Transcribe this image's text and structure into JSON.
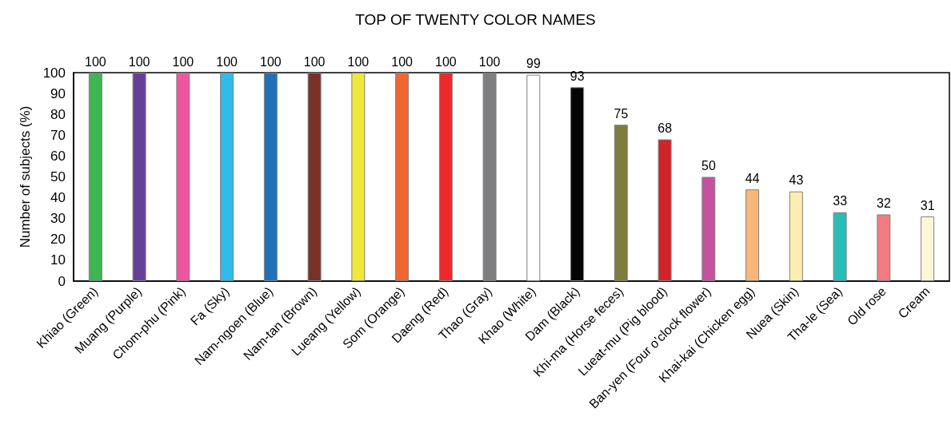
{
  "chart_data": {
    "type": "bar",
    "title": "TOP OF TWENTY COLOR NAMES",
    "ylabel": "Number of subjects (%)",
    "categories": [
      "Khiao (Green)",
      "Muang (Purple)",
      "Chom-phu (Pink)",
      "Fa (Sky)",
      "Nam-ngoen (Blue)",
      "Nam-tan (Brown)",
      "Lueang (Yellow)",
      "Som (Orange)",
      "Daeng (Red)",
      "Thao (Gray)",
      "Khao (White)",
      "Dam (Black)",
      "Khi-ma (Horse feces)",
      "Lueat-mu (Pig blood)",
      "Ban-yen (Four o'clock flower)",
      "Khai-kai (Chicken egg)",
      "Nuea (Skin)",
      "Tha-le (Sea)",
      "Old rose",
      "Cream"
    ],
    "values": [
      100,
      100,
      100,
      100,
      100,
      100,
      100,
      100,
      100,
      100,
      99,
      93,
      75,
      68,
      50,
      44,
      43,
      33,
      32,
      31
    ],
    "colors": [
      "#3fb554",
      "#673f98",
      "#ee55a0",
      "#2fbbec",
      "#2271b8",
      "#7a3128",
      "#f0e838",
      "#f06630",
      "#ec2a2d",
      "#7e7d80",
      "#ffffff",
      "#050505",
      "#7e7e3c",
      "#d12428",
      "#c4529c",
      "#f9b679",
      "#fdedb0",
      "#2abdb6",
      "#f07b80",
      "#fbf8d8"
    ],
    "ylim": [
      0,
      100
    ],
    "yticks": [
      0,
      10,
      20,
      30,
      40,
      50,
      60,
      70,
      80,
      90,
      100
    ],
    "data_labels": true,
    "grid": false
  }
}
